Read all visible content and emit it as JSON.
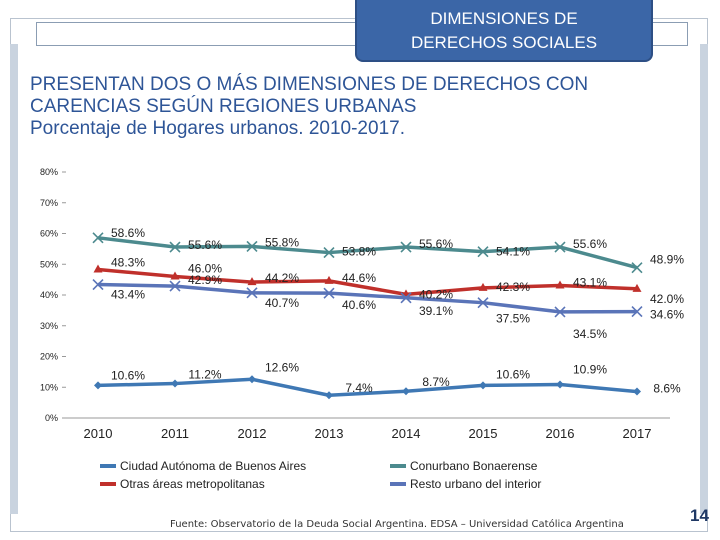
{
  "header": {
    "line1": "DIMENSIONES DE",
    "line2": "DERECHOS SOCIALES"
  },
  "title": {
    "line1": "PRESENTAN DOS O MÁS DIMENSIONES DE DERECHOS CON",
    "line2": "CARENCIAS SEGÚN REGIONES URBANAS",
    "line3": "Porcentaje de Hogares urbanos. 2010-2017."
  },
  "footer": {
    "source": "Fuente: Observatorio de la Deuda Social Argentina. EDSA – Universidad Católica Argentina",
    "page": "14"
  },
  "colors": {
    "header_bg": "#3b66a7",
    "title_text": "#2e5597"
  },
  "chart_data": {
    "type": "line",
    "categories": [
      "2010",
      "2011",
      "2012",
      "2013",
      "2014",
      "2015",
      "2016",
      "2017"
    ],
    "ylim": [
      0,
      80
    ],
    "yticks": [
      "0%",
      "10%",
      "20%",
      "30%",
      "40%",
      "50%",
      "60%",
      "70%",
      "80%"
    ],
    "grid": false,
    "legend_position": "bottom",
    "series": [
      {
        "name": "Ciudad Autónoma de Buenos Aires",
        "color": "#3f78b4",
        "marker": "diamond",
        "values": [
          10.6,
          11.2,
          12.6,
          7.4,
          8.7,
          10.6,
          10.9,
          8.6
        ],
        "labels": [
          "10.6%",
          "11.2%",
          "12.6%",
          "7.4%",
          "8.7%",
          "10.6%",
          "10.9%",
          "8.6%"
        ]
      },
      {
        "name": "Conurbano Bonaerense",
        "color": "#4c8a8e",
        "marker": "x",
        "values": [
          58.6,
          55.6,
          55.8,
          53.8,
          55.6,
          54.1,
          55.6,
          48.9
        ],
        "labels": [
          "58.6%",
          "55.6%",
          "55.8%",
          "53.8%",
          "55.6%",
          "54.1%",
          "55.6%",
          "48.9%"
        ]
      },
      {
        "name": "Otras áreas metropolitanas",
        "color": "#c0302b",
        "marker": "triangle",
        "values": [
          48.3,
          46.0,
          44.2,
          44.6,
          40.2,
          42.3,
          43.1,
          42.0
        ],
        "labels": [
          "48.3%",
          "46.0%",
          "44.2%",
          "44.6%",
          "40.2%",
          "42.3%",
          "43.1%",
          "42.0%"
        ]
      },
      {
        "name": "Resto urbano del interior",
        "color": "#5a74b8",
        "marker": "x",
        "values": [
          43.4,
          42.9,
          40.7,
          40.6,
          39.1,
          37.5,
          34.5,
          34.6
        ],
        "labels": [
          "43.4%",
          "42.9%",
          "40.7%",
          "40.6%",
          "39.1%",
          "37.5%",
          "34.5%",
          "34.6%"
        ]
      }
    ]
  }
}
